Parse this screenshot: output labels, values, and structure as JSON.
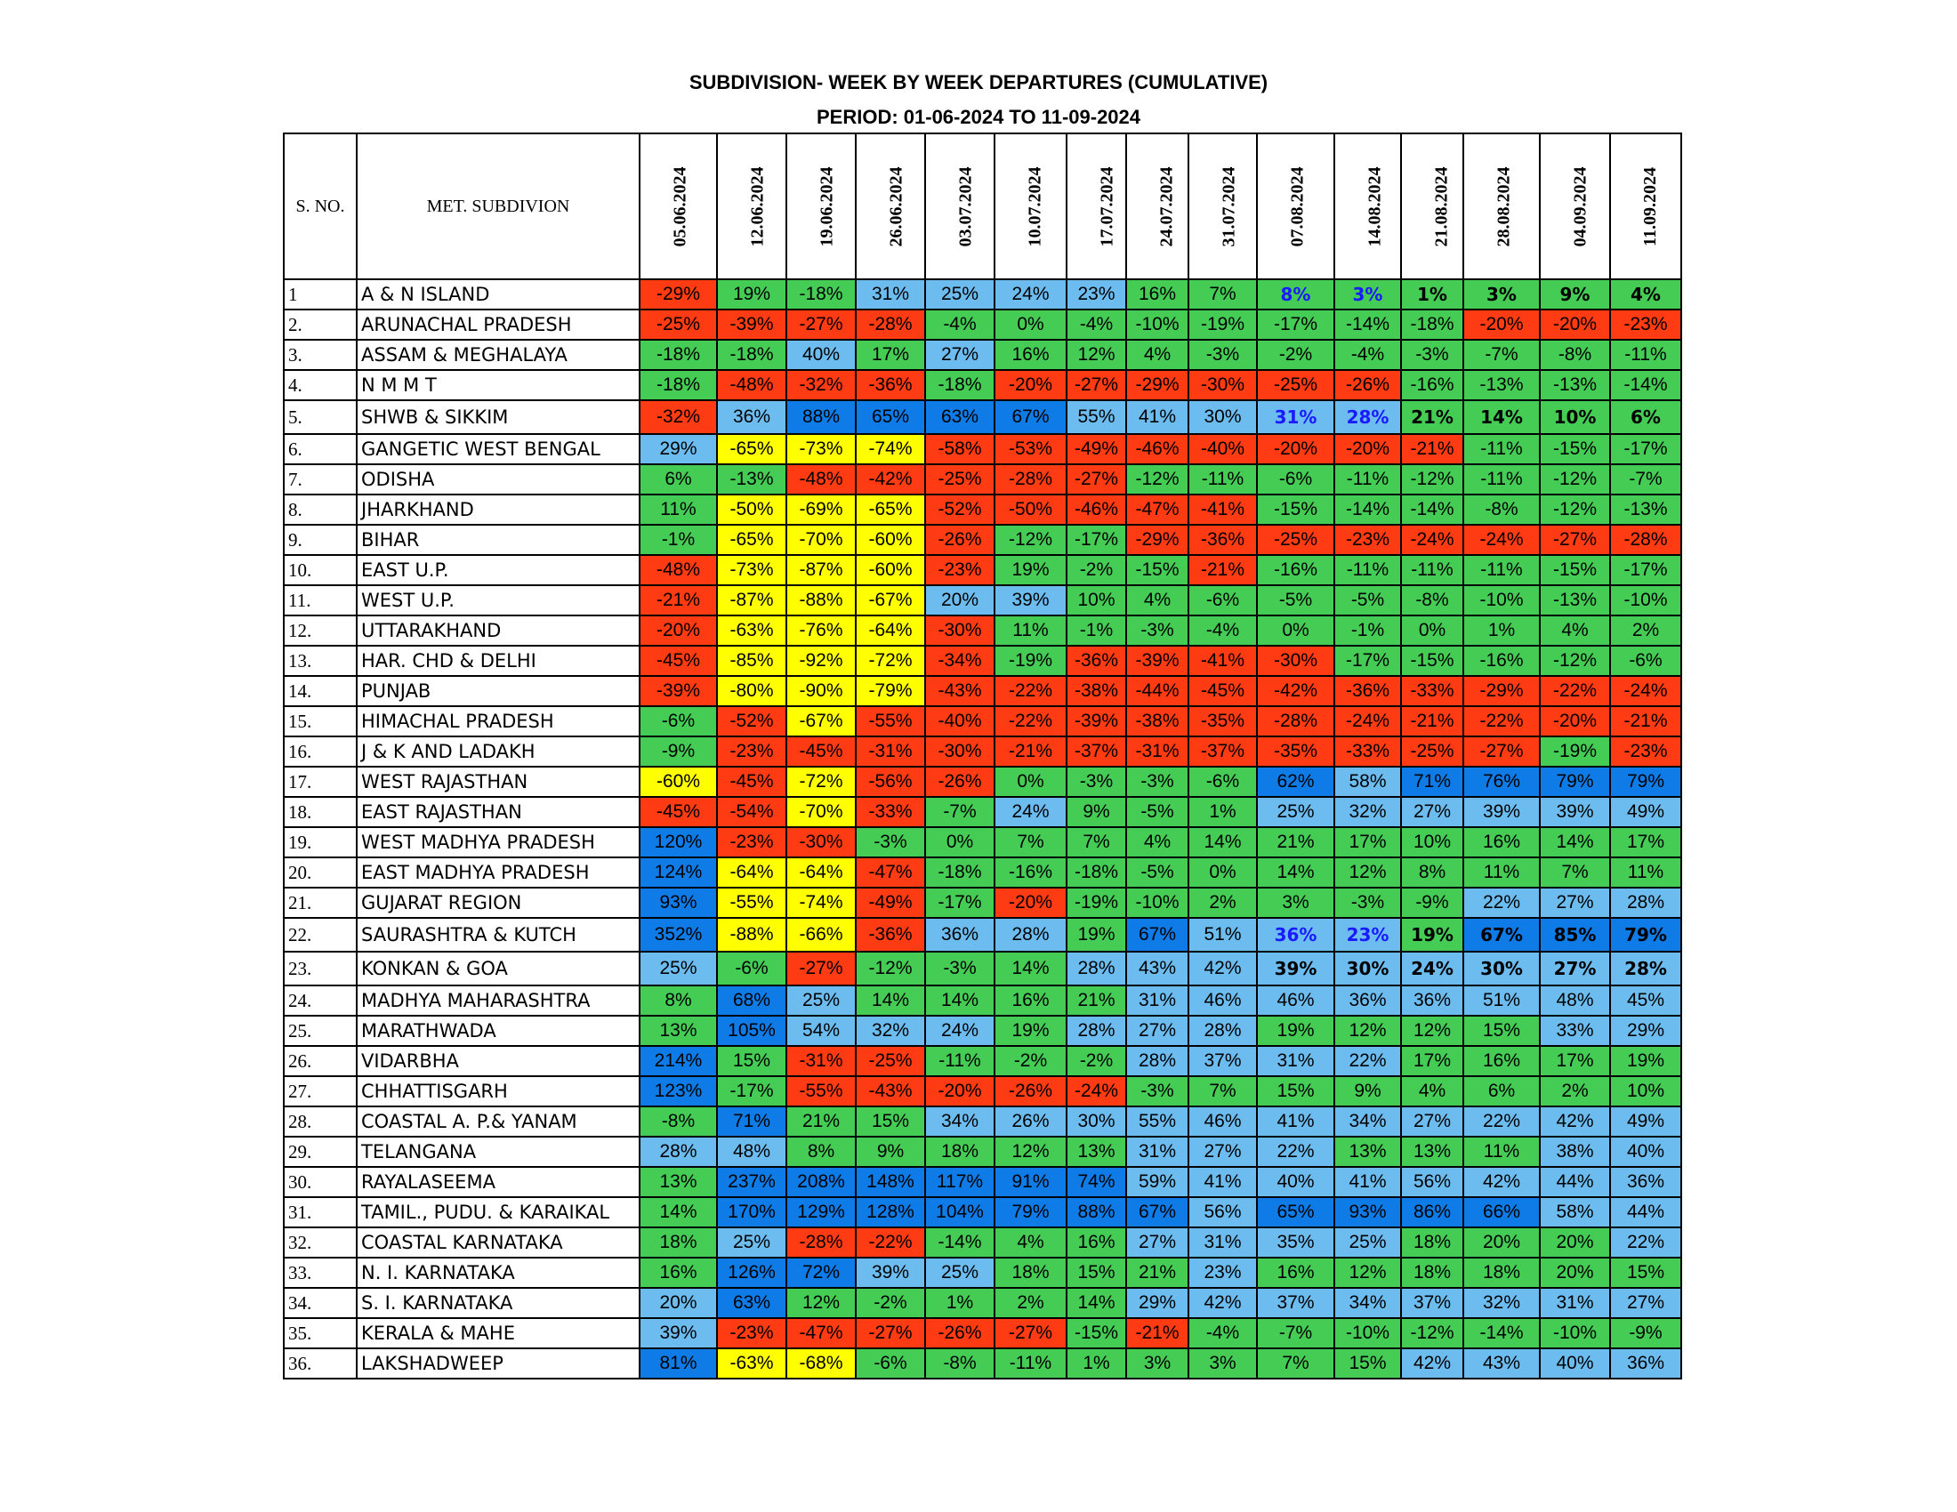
{
  "title": "SUBDIVISION- WEEK BY WEEK DEPARTURES (CUMULATIVE)",
  "period": "PERIOD: 01-06-2024 TO 11-09-2024",
  "header": {
    "sno": "S. NO.",
    "name": "MET. SUBDIVION"
  },
  "dates": [
    "05.06.2024",
    "12.06.2024",
    "19.06.2024",
    "26.06.2024",
    "03.07.2024",
    "10.07.2024",
    "17.07.2024",
    "24.07.2024",
    "31.07.2024",
    "07.08.2024",
    "14.08.2024",
    "21.08.2024",
    "28.08.2024",
    "04.09.2024",
    "11.09.2024"
  ],
  "legend_colors": {
    "R": "#ff3b13",
    "Y": "#ffff00",
    "G": "#44cc55",
    "L": "#6cbcf0",
    "D": "#0f7be6"
  },
  "rows": [
    {
      "sno": "1",
      "name": "A & N ISLAND",
      "v": [
        "-29%",
        "19%",
        "-18%",
        "31%",
        "25%",
        "24%",
        "23%",
        "16%",
        "7%",
        "8%",
        "3%",
        "1%",
        "3%",
        "9%",
        "4%"
      ],
      "c": "RGGLLLLGGGGGGGG",
      "b": "000000000BBbbbb"
    },
    {
      "sno": "2.",
      "name": "ARUNACHAL PRADESH",
      "v": [
        "-25%",
        "-39%",
        "-27%",
        "-28%",
        "-4%",
        "0%",
        "-4%",
        "-10%",
        "-19%",
        "-17%",
        "-14%",
        "-18%",
        "-20%",
        "-20%",
        "-23%"
      ],
      "c": "RRRRGGGGGGGGRRR",
      "b": "000000000000000"
    },
    {
      "sno": "3.",
      "name": "ASSAM & MEGHALAYA",
      "v": [
        "-18%",
        "-18%",
        "40%",
        "17%",
        "27%",
        "16%",
        "12%",
        "4%",
        "-3%",
        "-2%",
        "-4%",
        "-3%",
        "-7%",
        "-8%",
        "-11%"
      ],
      "c": "GGLGLGGGGGGGGGG",
      "b": "000000000000000"
    },
    {
      "sno": "4.",
      "name": "N M M T",
      "v": [
        "-18%",
        "-48%",
        "-32%",
        "-36%",
        "-18%",
        "-20%",
        "-27%",
        "-29%",
        "-30%",
        "-25%",
        "-26%",
        "-16%",
        "-13%",
        "-13%",
        "-14%"
      ],
      "c": "GRRRGRRRRRRGGGG",
      "b": "000000000000000"
    },
    {
      "sno": "5.",
      "name": "SHWB & SIKKIM",
      "v": [
        "-32%",
        "36%",
        "88%",
        "65%",
        "63%",
        "67%",
        "55%",
        "41%",
        "30%",
        "31%",
        "28%",
        "21%",
        "14%",
        "10%",
        "6%"
      ],
      "c": "RLDDDDLLLLLGGGG",
      "b": "000000000BBbbbb"
    },
    {
      "sno": "6.",
      "name": "GANGETIC WEST BENGAL",
      "v": [
        "29%",
        "-65%",
        "-73%",
        "-74%",
        "-58%",
        "-53%",
        "-49%",
        "-46%",
        "-40%",
        "-20%",
        "-20%",
        "-21%",
        "-11%",
        "-15%",
        "-17%"
      ],
      "c": "LYYYRRRRRRRRGGG",
      "b": "000000000000000"
    },
    {
      "sno": "7.",
      "name": "ODISHA",
      "v": [
        "6%",
        "-13%",
        "-48%",
        "-42%",
        "-25%",
        "-28%",
        "-27%",
        "-12%",
        "-11%",
        "-6%",
        "-11%",
        "-12%",
        "-11%",
        "-12%",
        "-7%"
      ],
      "c": "GGRRRRRGGGGGGGG",
      "b": "000000000000000"
    },
    {
      "sno": "8.",
      "name": "JHARKHAND",
      "v": [
        "11%",
        "-50%",
        "-69%",
        "-65%",
        "-52%",
        "-50%",
        "-46%",
        "-47%",
        "-41%",
        "-15%",
        "-14%",
        "-14%",
        "-8%",
        "-12%",
        "-13%"
      ],
      "c": "GYYYRRRRRGGGGGG",
      "b": "000000000000000"
    },
    {
      "sno": "9.",
      "name": "BIHAR",
      "v": [
        "-1%",
        "-65%",
        "-70%",
        "-60%",
        "-26%",
        "-12%",
        "-17%",
        "-29%",
        "-36%",
        "-25%",
        "-23%",
        "-24%",
        "-24%",
        "-27%",
        "-28%"
      ],
      "c": "GYYYRGGRRRRRRRR",
      "b": "000000000000000"
    },
    {
      "sno": "10.",
      "name": "EAST U.P.",
      "v": [
        "-48%",
        "-73%",
        "-87%",
        "-60%",
        "-23%",
        "19%",
        "-2%",
        "-15%",
        "-21%",
        "-16%",
        "-11%",
        "-11%",
        "-11%",
        "-15%",
        "-17%"
      ],
      "c": "RYYYRGGGRGGGGGG",
      "b": "000000000000000"
    },
    {
      "sno": "11.",
      "name": "WEST U.P.",
      "v": [
        "-21%",
        "-87%",
        "-88%",
        "-67%",
        "20%",
        "39%",
        "10%",
        "4%",
        "-6%",
        "-5%",
        "-5%",
        "-8%",
        "-10%",
        "-13%",
        "-10%"
      ],
      "c": "RYYYLLGGGGGGGGG",
      "b": "000000000000000"
    },
    {
      "sno": "12.",
      "name": "UTTARAKHAND",
      "v": [
        "-20%",
        "-63%",
        "-76%",
        "-64%",
        "-30%",
        "11%",
        "-1%",
        "-3%",
        "-4%",
        "0%",
        "-1%",
        "0%",
        "1%",
        "4%",
        "2%"
      ],
      "c": "RYYYRGGGGGGGGGG",
      "b": "000000000000000"
    },
    {
      "sno": "13.",
      "name": "HAR. CHD & DELHI",
      "v": [
        "-45%",
        "-85%",
        "-92%",
        "-72%",
        "-34%",
        "-19%",
        "-36%",
        "-39%",
        "-41%",
        "-30%",
        "-17%",
        "-15%",
        "-16%",
        "-12%",
        "-6%"
      ],
      "c": "RYYYRGRRRRGGGGG",
      "b": "000000000000000"
    },
    {
      "sno": "14.",
      "name": "PUNJAB",
      "v": [
        "-39%",
        "-80%",
        "-90%",
        "-79%",
        "-43%",
        "-22%",
        "-38%",
        "-44%",
        "-45%",
        "-42%",
        "-36%",
        "-33%",
        "-29%",
        "-22%",
        "-24%"
      ],
      "c": "RYYYRRRRRRRRRRR",
      "b": "000000000000000"
    },
    {
      "sno": "15.",
      "name": "HIMACHAL PRADESH",
      "v": [
        "-6%",
        "-52%",
        "-67%",
        "-55%",
        "-40%",
        "-22%",
        "-39%",
        "-38%",
        "-35%",
        "-28%",
        "-24%",
        "-21%",
        "-22%",
        "-20%",
        "-21%"
      ],
      "c": "GRYRRRRRRRRRRRR",
      "b": "000000000000000"
    },
    {
      "sno": "16.",
      "name": "J & K AND LADAKH",
      "v": [
        "-9%",
        "-23%",
        "-45%",
        "-31%",
        "-30%",
        "-21%",
        "-37%",
        "-31%",
        "-37%",
        "-35%",
        "-33%",
        "-25%",
        "-27%",
        "-19%",
        "-23%"
      ],
      "c": "GRRRRRRRRRRRRGR",
      "b": "000000000000000"
    },
    {
      "sno": "17.",
      "name": "WEST RAJASTHAN",
      "v": [
        "-60%",
        "-45%",
        "-72%",
        "-56%",
        "-26%",
        "0%",
        "-3%",
        "-3%",
        "-6%",
        "62%",
        "58%",
        "71%",
        "76%",
        "79%",
        "79%"
      ],
      "c": "YRYRRGGGGDLDDDD",
      "b": "000000000000000"
    },
    {
      "sno": "18.",
      "name": "EAST RAJASTHAN",
      "v": [
        "-45%",
        "-54%",
        "-70%",
        "-33%",
        "-7%",
        "24%",
        "9%",
        "-5%",
        "1%",
        "25%",
        "32%",
        "27%",
        "39%",
        "39%",
        "49%"
      ],
      "c": "RRYRGLGGGLLLLLL",
      "b": "000000000000000"
    },
    {
      "sno": "19.",
      "name": "WEST MADHYA PRADESH",
      "v": [
        "120%",
        "-23%",
        "-30%",
        "-3%",
        "0%",
        "7%",
        "7%",
        "4%",
        "14%",
        "21%",
        "17%",
        "10%",
        "16%",
        "14%",
        "17%"
      ],
      "c": "DRRGGGGGGGGGGGG",
      "b": "000000000000000"
    },
    {
      "sno": "20.",
      "name": "EAST MADHYA PRADESH",
      "v": [
        "124%",
        "-64%",
        "-64%",
        "-47%",
        "-18%",
        "-16%",
        "-18%",
        "-5%",
        "0%",
        "14%",
        "12%",
        "8%",
        "11%",
        "7%",
        "11%"
      ],
      "c": "DYYRGGGGGGGGGGG",
      "b": "000000000000000"
    },
    {
      "sno": "21.",
      "name": "GUJARAT REGION",
      "v": [
        "93%",
        "-55%",
        "-74%",
        "-49%",
        "-17%",
        "-20%",
        "-19%",
        "-10%",
        "2%",
        "3%",
        "-3%",
        "-9%",
        "22%",
        "27%",
        "28%"
      ],
      "c": "DYYRGRGGGGGGLLL",
      "b": "000000000000000"
    },
    {
      "sno": "22.",
      "name": "SAURASHTRA & KUTCH",
      "v": [
        "352%",
        "-88%",
        "-66%",
        "-36%",
        "36%",
        "28%",
        "19%",
        "67%",
        "51%",
        "36%",
        "23%",
        "19%",
        "67%",
        "85%",
        "79%"
      ],
      "c": "DYYRLLGDLLLGDDD",
      "b": "000000000BBbbbb"
    },
    {
      "sno": "23.",
      "name": "KONKAN & GOA",
      "v": [
        "25%",
        "-6%",
        "-27%",
        "-12%",
        "-3%",
        "14%",
        "28%",
        "43%",
        "42%",
        "39%",
        "30%",
        "24%",
        "30%",
        "27%",
        "28%"
      ],
      "c": "LGRGGGLLLLLLLLL",
      "b": "000000000bbbbbb"
    },
    {
      "sno": "24.",
      "name": "MADHYA MAHARASHTRA",
      "v": [
        "8%",
        "68%",
        "25%",
        "14%",
        "14%",
        "16%",
        "21%",
        "31%",
        "46%",
        "46%",
        "36%",
        "36%",
        "51%",
        "48%",
        "45%"
      ],
      "c": "GDLGGGGLLLLLLLL",
      "b": "000000000000000"
    },
    {
      "sno": "25.",
      "name": "MARATHWADA",
      "v": [
        "13%",
        "105%",
        "54%",
        "32%",
        "24%",
        "19%",
        "28%",
        "27%",
        "28%",
        "19%",
        "12%",
        "12%",
        "15%",
        "33%",
        "29%"
      ],
      "c": "GDLLLGLLLGGGGLL",
      "b": "000000000000000"
    },
    {
      "sno": "26.",
      "name": "VIDARBHA",
      "v": [
        "214%",
        "15%",
        "-31%",
        "-25%",
        "-11%",
        "-2%",
        "-2%",
        "28%",
        "37%",
        "31%",
        "22%",
        "17%",
        "16%",
        "17%",
        "19%"
      ],
      "c": "DGRRGGGLLLLGGGG",
      "b": "000000000000000"
    },
    {
      "sno": "27.",
      "name": "CHHATTISGARH",
      "v": [
        "123%",
        "-17%",
        "-55%",
        "-43%",
        "-20%",
        "-26%",
        "-24%",
        "-3%",
        "7%",
        "15%",
        "9%",
        "4%",
        "6%",
        "2%",
        "10%"
      ],
      "c": "DGRRRRRGGGGGGGG",
      "b": "000000000000000"
    },
    {
      "sno": "28.",
      "name": "COASTAL A. P.& YANAM",
      "v": [
        "-8%",
        "71%",
        "21%",
        "15%",
        "34%",
        "26%",
        "30%",
        "55%",
        "46%",
        "41%",
        "34%",
        "27%",
        "22%",
        "42%",
        "49%"
      ],
      "c": "GDGGLLLLLLLLLLL",
      "b": "000000000000000"
    },
    {
      "sno": "29.",
      "name": "TELANGANA",
      "v": [
        "28%",
        "48%",
        "8%",
        "9%",
        "18%",
        "12%",
        "13%",
        "31%",
        "27%",
        "22%",
        "13%",
        "13%",
        "11%",
        "38%",
        "40%"
      ],
      "c": "LLGGGGGLLLGGGLL",
      "b": "000000000000000"
    },
    {
      "sno": "30.",
      "name": "RAYALASEEMA",
      "v": [
        "13%",
        "237%",
        "208%",
        "148%",
        "117%",
        "91%",
        "74%",
        "59%",
        "41%",
        "40%",
        "41%",
        "56%",
        "42%",
        "44%",
        "36%"
      ],
      "c": "GDDDDDDLLLLLLLL",
      "b": "000000000000000"
    },
    {
      "sno": "31.",
      "name": "TAMIL., PUDU. & KARAIKAL",
      "v": [
        "14%",
        "170%",
        "129%",
        "128%",
        "104%",
        "79%",
        "88%",
        "67%",
        "56%",
        "65%",
        "93%",
        "86%",
        "66%",
        "58%",
        "44%"
      ],
      "c": "GDDDDDDDLDDDDLL",
      "b": "000000000000000"
    },
    {
      "sno": "32.",
      "name": "COASTAL KARNATAKA",
      "v": [
        "18%",
        "25%",
        "-28%",
        "-22%",
        "-14%",
        "4%",
        "16%",
        "27%",
        "31%",
        "35%",
        "25%",
        "18%",
        "20%",
        "20%",
        "22%"
      ],
      "c": "GLRRGGGLLLLGGGL",
      "b": "000000000000000"
    },
    {
      "sno": "33.",
      "name": "N. I. KARNATAKA",
      "v": [
        "16%",
        "126%",
        "72%",
        "39%",
        "25%",
        "18%",
        "15%",
        "21%",
        "23%",
        "16%",
        "12%",
        "18%",
        "18%",
        "20%",
        "15%"
      ],
      "c": "GDDLLGGGLGGGGGG",
      "b": "000000000000000"
    },
    {
      "sno": "34.",
      "name": "S. I. KARNATAKA",
      "v": [
        "20%",
        "63%",
        "12%",
        "-2%",
        "1%",
        "2%",
        "14%",
        "29%",
        "42%",
        "37%",
        "34%",
        "37%",
        "32%",
        "31%",
        "27%"
      ],
      "c": "LDGGGGGLLLLLLLL",
      "b": "000000000000000"
    },
    {
      "sno": "35.",
      "name": "KERALA & MAHE",
      "v": [
        "39%",
        "-23%",
        "-47%",
        "-27%",
        "-26%",
        "-27%",
        "-15%",
        "-21%",
        "-4%",
        "-7%",
        "-10%",
        "-12%",
        "-14%",
        "-10%",
        "-9%"
      ],
      "c": "LRRRRRGRGGGGGGG",
      "b": "000000000000000"
    },
    {
      "sno": "36.",
      "name": "LAKSHADWEEP",
      "v": [
        "81%",
        "-63%",
        "-68%",
        "-6%",
        "-8%",
        "-11%",
        "1%",
        "3%",
        "3%",
        "7%",
        "15%",
        "42%",
        "43%",
        "40%",
        "36%"
      ],
      "c": "DYYGGGGGGGGLLLL",
      "b": "000000000000000"
    }
  ]
}
